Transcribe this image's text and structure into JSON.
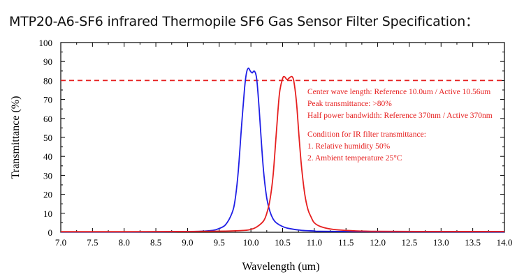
{
  "page_title": "MTP20-A6-SF6 infrared Thermopile SF6 Gas Sensor Filter Specification：",
  "colors": {
    "reference": "#1f1fe6",
    "active": "#e61f1f",
    "threshold": "#e61f1f",
    "annotation": "#e61f1f",
    "axis": "#000000"
  },
  "chart_data": {
    "type": "line",
    "title": "MTP20-A6-SF6 infrared Thermopile SF6 Gas Sensor Filter Specification：",
    "xlabel": "Wavelength (um)",
    "ylabel": "Transmittance (%)",
    "xlim": [
      7.0,
      14.0
    ],
    "ylim": [
      0,
      100
    ],
    "x_ticks": [
      "7.0",
      "7.5",
      "8.0",
      "8.5",
      "9.0",
      "9.5",
      "10.0",
      "10.5",
      "11.0",
      "11.5",
      "12.0",
      "12.5",
      "13.0",
      "13.5",
      "14.0"
    ],
    "y_ticks": [
      "0",
      "10",
      "20",
      "30",
      "40",
      "50",
      "60",
      "70",
      "80",
      "90",
      "100"
    ],
    "grid": false,
    "threshold_line": {
      "y": 80,
      "style": "dashed"
    },
    "series": [
      {
        "color": "#1f1fe6",
        "points": [
          [
            7.0,
            0.2
          ],
          [
            8.0,
            0.2
          ],
          [
            8.8,
            0.3
          ],
          [
            9.2,
            0.5
          ],
          [
            9.4,
            1.0
          ],
          [
            9.5,
            2
          ],
          [
            9.6,
            4
          ],
          [
            9.7,
            10
          ],
          [
            9.75,
            17
          ],
          [
            9.8,
            32
          ],
          [
            9.85,
            55
          ],
          [
            9.9,
            76
          ],
          [
            9.93,
            84
          ],
          [
            9.96,
            86.5
          ],
          [
            9.99,
            85
          ],
          [
            10.02,
            84
          ],
          [
            10.05,
            85
          ],
          [
            10.08,
            83
          ],
          [
            10.1,
            78
          ],
          [
            10.13,
            65
          ],
          [
            10.16,
            50
          ],
          [
            10.2,
            32
          ],
          [
            10.25,
            18
          ],
          [
            10.3,
            11
          ],
          [
            10.35,
            7
          ],
          [
            10.4,
            5
          ],
          [
            10.5,
            3
          ],
          [
            10.6,
            2
          ],
          [
            10.8,
            1
          ],
          [
            11.0,
            0.7
          ],
          [
            11.1,
            0.5
          ],
          [
            12.0,
            0.3
          ],
          [
            14.0,
            0.2
          ]
        ]
      },
      {
        "color": "#e61f1f",
        "points": [
          [
            7.0,
            0.3
          ],
          [
            8.0,
            0.3
          ],
          [
            9.0,
            0.4
          ],
          [
            9.6,
            0.6
          ],
          [
            9.9,
            1.0
          ],
          [
            10.0,
            1.5
          ],
          [
            10.1,
            3
          ],
          [
            10.2,
            6
          ],
          [
            10.25,
            10
          ],
          [
            10.3,
            17
          ],
          [
            10.35,
            30
          ],
          [
            10.4,
            52
          ],
          [
            10.45,
            73
          ],
          [
            10.5,
            81
          ],
          [
            10.53,
            82
          ],
          [
            10.57,
            80.5
          ],
          [
            10.61,
            81.5
          ],
          [
            10.65,
            82
          ],
          [
            10.68,
            79
          ],
          [
            10.72,
            68
          ],
          [
            10.76,
            50
          ],
          [
            10.8,
            34
          ],
          [
            10.85,
            20
          ],
          [
            10.9,
            12
          ],
          [
            10.95,
            8
          ],
          [
            11.0,
            5
          ],
          [
            11.1,
            3
          ],
          [
            11.3,
            1.5
          ],
          [
            11.6,
            0.8
          ],
          [
            12.0,
            0.5
          ],
          [
            13.0,
            0.4
          ],
          [
            14.0,
            0.4
          ]
        ]
      }
    ],
    "annotations": [
      "Center wave length: Reference 10.0um / Active 10.56um",
      "Peak transmittance: >80%",
      "Half power bandwidth: Reference 370nm / Active 370nm",
      "Condition for IR filter transmittance:",
      "1. Relative humidity 50%",
      "2. Ambient temperature 25°C"
    ]
  }
}
